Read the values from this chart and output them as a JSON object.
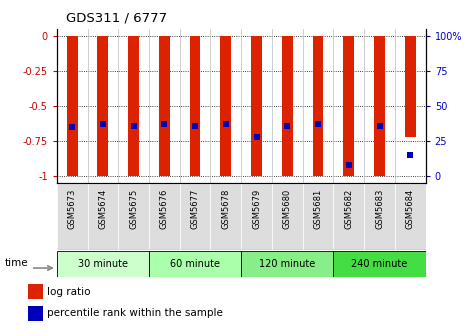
{
  "title": "GDS311 / 6777",
  "samples": [
    "GSM5673",
    "GSM5674",
    "GSM5675",
    "GSM5676",
    "GSM5677",
    "GSM5678",
    "GSM5679",
    "GSM5680",
    "GSM5681",
    "GSM5682",
    "GSM5683",
    "GSM5684"
  ],
  "log_ratios": [
    -1.0,
    -1.0,
    -1.0,
    -1.0,
    -1.0,
    -1.0,
    -1.0,
    -1.0,
    -1.0,
    -1.0,
    -1.0,
    -0.72
  ],
  "percentile_ranks": [
    0.35,
    0.37,
    0.36,
    0.37,
    0.36,
    0.37,
    0.28,
    0.36,
    0.37,
    0.08,
    0.36,
    0.15
  ],
  "ylim_min": -1.05,
  "ylim_max": 0.05,
  "yticks": [
    0,
    -0.25,
    -0.5,
    -0.75,
    -1.0
  ],
  "ytick_labels_left": [
    "0",
    "-0.25",
    "-0.5",
    "-0.75",
    "-1"
  ],
  "ytick_labels_right": [
    "100%",
    "75",
    "50",
    "25",
    "0"
  ],
  "bar_color": "#dd2200",
  "blue_color": "#0000bb",
  "bar_width": 0.35,
  "groups": [
    {
      "label": "30 minute",
      "start": 0,
      "end": 3,
      "color": "#ccffcc"
    },
    {
      "label": "60 minute",
      "start": 3,
      "end": 6,
      "color": "#aaffaa"
    },
    {
      "label": "120 minute",
      "start": 6,
      "end": 9,
      "color": "#88ee88"
    },
    {
      "label": "240 minute",
      "start": 9,
      "end": 12,
      "color": "#44dd44"
    }
  ],
  "time_label": "time",
  "legend_labels": [
    "log ratio",
    "percentile rank within the sample"
  ],
  "tick_label_color_left": "#cc0000",
  "tick_label_color_right": "#0000cc",
  "blue_square_size": 25,
  "separator_color": "#bbbbbb",
  "xtick_bg_color": "#dddddd"
}
